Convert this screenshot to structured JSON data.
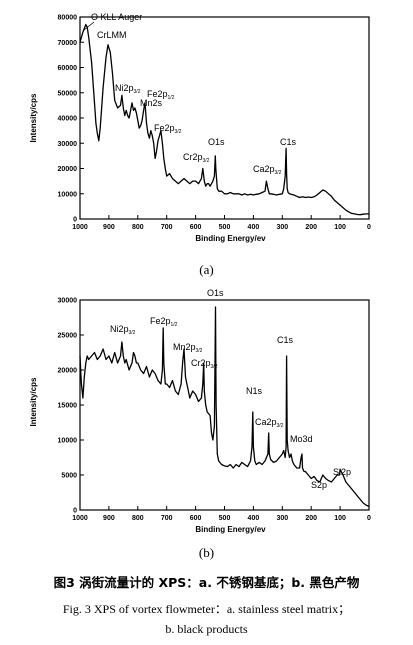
{
  "chart_data": [
    {
      "type": "line",
      "panel_label": "(a)",
      "xlabel": "Binding Energy/ev",
      "ylabel": "Intensity/cps",
      "xlim": [
        1000,
        0
      ],
      "ylim": [
        0,
        80000
      ],
      "x_ticks": [
        1000,
        900,
        800,
        700,
        600,
        500,
        400,
        300,
        200,
        100,
        0
      ],
      "x_tick_labels": [
        "1000",
        "900",
        "800",
        "700",
        "600",
        "500",
        "400",
        "300",
        "200",
        "100",
        "0"
      ],
      "y_ticks": [
        0,
        10000,
        20000,
        30000,
        40000,
        50000,
        60000,
        70000,
        80000
      ],
      "y_tick_labels": [
        "0",
        "10000",
        "20000",
        "30000",
        "40000",
        "50000",
        "60000",
        "70000",
        "80000"
      ],
      "series": [
        {
          "x": [
            1000,
            990,
            980,
            975,
            970,
            960,
            950,
            945,
            940,
            935,
            930,
            920,
            910,
            903,
            895,
            888,
            880,
            870,
            860,
            855,
            850,
            845,
            840,
            835,
            830,
            825,
            820,
            815,
            810,
            805,
            800,
            795,
            790,
            785,
            780,
            775,
            770,
            765,
            760,
            755,
            750,
            745,
            740,
            735,
            730,
            725,
            720,
            715,
            710,
            705,
            700,
            690,
            680,
            670,
            660,
            650,
            640,
            630,
            620,
            610,
            600,
            590,
            580,
            575,
            570,
            565,
            560,
            555,
            550,
            545,
            540,
            535,
            532,
            530,
            525,
            520,
            510,
            500,
            490,
            480,
            470,
            460,
            450,
            440,
            430,
            420,
            410,
            400,
            390,
            380,
            370,
            360,
            355,
            350,
            345,
            340,
            330,
            320,
            310,
            300,
            295,
            290,
            287,
            285,
            283,
            280,
            275,
            270,
            260,
            250,
            240,
            230,
            220,
            210,
            200,
            190,
            180,
            170,
            160,
            150,
            140,
            130,
            120,
            110,
            100,
            90,
            80,
            70,
            60,
            50,
            40,
            30,
            20,
            10,
            0
          ],
          "y": [
            70000,
            74000,
            77000,
            76000,
            72000,
            62000,
            46000,
            38000,
            34000,
            31000,
            36000,
            52000,
            64000,
            69000,
            66000,
            58000,
            47000,
            44000,
            45000,
            49000,
            44000,
            41000,
            43000,
            41000,
            40000,
            43000,
            46000,
            43000,
            44000,
            42000,
            39000,
            36000,
            37000,
            39000,
            43000,
            46000,
            38000,
            34000,
            32000,
            35000,
            33000,
            30000,
            24000,
            27000,
            31000,
            33000,
            35000,
            30000,
            24000,
            20000,
            17000,
            18000,
            16000,
            15000,
            14000,
            15000,
            16000,
            15000,
            14000,
            15000,
            15000,
            14000,
            16000,
            20000,
            15000,
            13000,
            14000,
            14000,
            13000,
            14000,
            15000,
            17000,
            25000,
            20000,
            12000,
            11000,
            11000,
            10000,
            10000,
            10500,
            10000,
            10000,
            10000,
            9500,
            10000,
            9500,
            9800,
            9500,
            9800,
            10000,
            10500,
            11000,
            15000,
            12000,
            10000,
            10000,
            9800,
            9500,
            9800,
            10000,
            12000,
            17000,
            28000,
            18000,
            12000,
            10500,
            10000,
            9800,
            9500,
            9000,
            8500,
            8800,
            8500,
            8700,
            8500,
            8800,
            9500,
            10500,
            11500,
            11000,
            10000,
            9000,
            7500,
            6500,
            5500,
            4500,
            3500,
            2800,
            2200,
            2000,
            1800,
            1700,
            1900,
            2000,
            2000
          ]
        }
      ],
      "annotations": [
        {
          "text": "O KLL Auger"
        },
        {
          "text": "CrLMM"
        },
        {
          "text": "Ni2p",
          "sub": "3/2"
        },
        {
          "text": "Fe2p",
          "sub": "1/2"
        },
        {
          "text": "Mn2s"
        },
        {
          "text": "Fe2p",
          "sub": "3/2"
        },
        {
          "text": "Cr2p",
          "sub": "3/2"
        },
        {
          "text": "O1s"
        },
        {
          "text": "Ca2p",
          "sub": "3/2"
        },
        {
          "text": "C1s"
        }
      ]
    },
    {
      "type": "line",
      "panel_label": "(b)",
      "xlabel": "Binding Energy/ev",
      "ylabel": "Intensity/cps",
      "xlim": [
        1000,
        0
      ],
      "ylim": [
        0,
        30000
      ],
      "x_ticks": [
        1000,
        900,
        800,
        700,
        600,
        500,
        400,
        300,
        200,
        100,
        0
      ],
      "x_tick_labels": [
        "1000",
        "900",
        "800",
        "700",
        "600",
        "500",
        "400",
        "300",
        "200",
        "100",
        "0"
      ],
      "y_ticks": [
        0,
        5000,
        10000,
        15000,
        20000,
        25000,
        30000
      ],
      "y_tick_labels": [
        "0",
        "5000",
        "10000",
        "15000",
        "20000",
        "25000",
        "30000"
      ],
      "series": [
        {
          "x": [
            1000,
            995,
            990,
            985,
            980,
            975,
            970,
            960,
            950,
            940,
            930,
            920,
            910,
            900,
            890,
            880,
            870,
            860,
            855,
            850,
            845,
            840,
            830,
            820,
            815,
            810,
            805,
            800,
            790,
            780,
            770,
            760,
            750,
            740,
            730,
            720,
            715,
            712,
            710,
            705,
            700,
            690,
            680,
            670,
            660,
            650,
            645,
            640,
            635,
            630,
            625,
            620,
            610,
            600,
            590,
            580,
            575,
            572,
            570,
            565,
            560,
            550,
            545,
            540,
            535,
            533,
            531,
            529,
            525,
            520,
            510,
            500,
            490,
            480,
            470,
            460,
            450,
            440,
            430,
            420,
            410,
            405,
            402,
            400,
            395,
            390,
            380,
            370,
            360,
            350,
            347,
            345,
            340,
            330,
            320,
            310,
            300,
            295,
            290,
            287,
            285,
            283,
            280,
            275,
            270,
            265,
            260,
            250,
            240,
            235,
            232,
            230,
            225,
            220,
            210,
            200,
            190,
            180,
            170,
            165,
            160,
            150,
            140,
            130,
            120,
            110,
            102,
            100,
            90,
            80,
            70,
            60,
            50,
            40,
            30,
            20,
            10,
            0
          ],
          "y": [
            22000,
            18000,
            16000,
            19000,
            21000,
            22000,
            21500,
            22000,
            22500,
            21500,
            22000,
            23000,
            21500,
            22000,
            21000,
            22500,
            21000,
            22000,
            24000,
            22000,
            21000,
            21500,
            20000,
            21000,
            22500,
            22000,
            21000,
            21000,
            20000,
            19500,
            20500,
            19000,
            20000,
            19500,
            18500,
            18000,
            20000,
            26000,
            21000,
            18000,
            18000,
            17500,
            18500,
            17000,
            16500,
            18000,
            21000,
            23000,
            19000,
            18000,
            17000,
            16000,
            17000,
            16500,
            15500,
            16000,
            18000,
            21000,
            17000,
            15000,
            14000,
            13500,
            11000,
            10000,
            12000,
            21000,
            29000,
            15000,
            8000,
            7000,
            6500,
            6300,
            6200,
            6500,
            6000,
            6500,
            6200,
            6800,
            6500,
            6200,
            7000,
            9000,
            14000,
            9000,
            7000,
            6500,
            6800,
            6500,
            7000,
            8000,
            11000,
            8000,
            7200,
            6800,
            7000,
            7500,
            8000,
            8500,
            7500,
            9000,
            22000,
            10000,
            8500,
            7500,
            8000,
            7000,
            6500,
            6000,
            6000,
            7500,
            8000,
            6000,
            5500,
            5500,
            5000,
            4500,
            4800,
            4200,
            4000,
            4500,
            5000,
            4500,
            4200,
            4000,
            4500,
            5000,
            5000,
            5800,
            5000,
            4000,
            3500,
            3000,
            2500,
            2000,
            1500,
            1000,
            700,
            500
          ]
        }
      ],
      "annotations": [
        {
          "text": "O1s"
        },
        {
          "text": "Ni2p",
          "sub": "3/2"
        },
        {
          "text": "Fe2p",
          "sub": "1/2"
        },
        {
          "text": "Mn2p",
          "sub": "3/2"
        },
        {
          "text": "Cr2p",
          "sub": "3/2"
        },
        {
          "text": "C1s"
        },
        {
          "text": "N1s"
        },
        {
          "text": "Ca2p",
          "sub": "3/2"
        },
        {
          "text": "Mo3d"
        },
        {
          "text": "S2p"
        },
        {
          "text": "Si2p"
        }
      ]
    }
  ],
  "figure": {
    "caption_cn": "图3   涡街流量计的 XPS：a. 不锈钢基底；b. 黑色产物",
    "caption_en_line1": "Fig. 3    XPS of vortex flowmeter：a. stainless steel matrix；",
    "caption_en_line2": "b. black products"
  }
}
